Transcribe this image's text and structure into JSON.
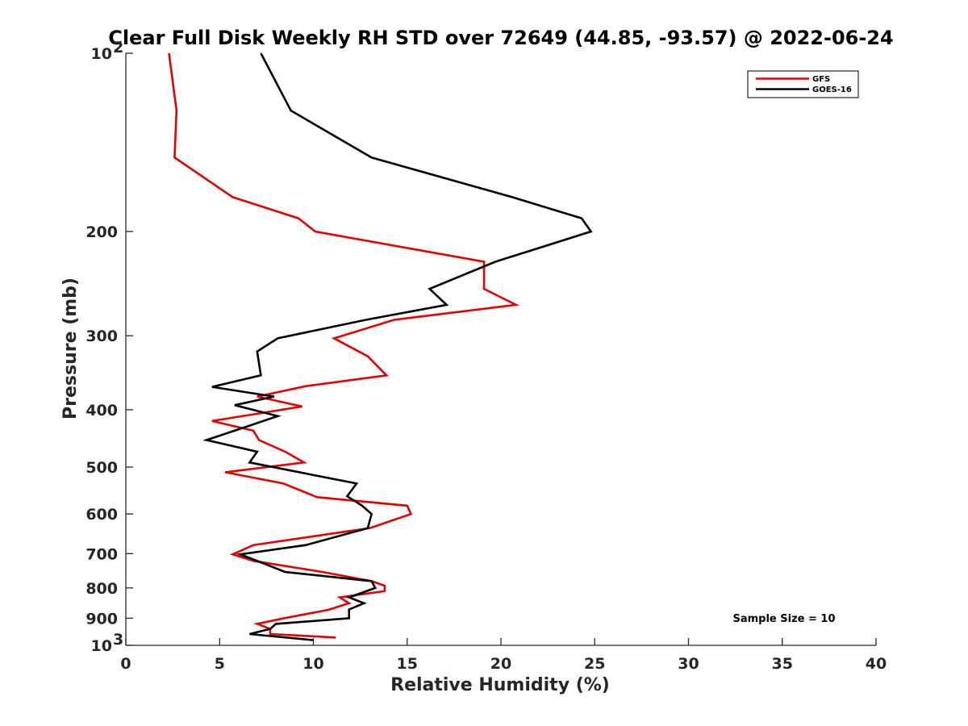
{
  "chart_data": {
    "type": "line",
    "title": "Clear Full Disk Weekly RH STD over 72649 (44.85, -93.57) @ 2022-06-24",
    "xlabel": "Relative Humidity (%)",
    "ylabel": "Pressure (mb)",
    "xlim": [
      0,
      40
    ],
    "ylim": [
      100,
      1000
    ],
    "yscale": "log",
    "yreversed": true,
    "grid": false,
    "legend_position": "top-right",
    "x_ticks": [
      {
        "value": 0,
        "label": "0"
      },
      {
        "value": 5,
        "label": "5"
      },
      {
        "value": 10,
        "label": "10"
      },
      {
        "value": 15,
        "label": "15"
      },
      {
        "value": 20,
        "label": "20"
      },
      {
        "value": 25,
        "label": "25"
      },
      {
        "value": 30,
        "label": "30"
      },
      {
        "value": 35,
        "label": "35"
      },
      {
        "value": 40,
        "label": "40"
      }
    ],
    "y_ticks": [
      {
        "value": 100,
        "label": "10",
        "sup": "2"
      },
      {
        "value": 200,
        "label": "200"
      },
      {
        "value": 300,
        "label": "300"
      },
      {
        "value": 400,
        "label": "400"
      },
      {
        "value": 500,
        "label": "500"
      },
      {
        "value": 600,
        "label": "600"
      },
      {
        "value": 700,
        "label": "700"
      },
      {
        "value": 800,
        "label": "800"
      },
      {
        "value": 900,
        "label": "900"
      },
      {
        "value": 1000,
        "label": "10",
        "sup": "3"
      }
    ],
    "annotation": "Sample Size = 10",
    "series": [
      {
        "name": "GFS",
        "color": "#e50000",
        "points": [
          [
            2.3,
            100
          ],
          [
            2.7,
            125
          ],
          [
            2.6,
            150
          ],
          [
            5.7,
            175
          ],
          [
            9.2,
            190
          ],
          [
            10.1,
            200
          ],
          [
            19.1,
            225
          ],
          [
            19.1,
            250
          ],
          [
            20.8,
            266
          ],
          [
            14.3,
            282
          ],
          [
            11.1,
            303
          ],
          [
            12.9,
            325
          ],
          [
            13.9,
            350
          ],
          [
            9.6,
            365
          ],
          [
            7.0,
            380
          ],
          [
            9.4,
            395
          ],
          [
            4.6,
            418
          ],
          [
            6.8,
            434
          ],
          [
            7.1,
            450
          ],
          [
            8.5,
            471
          ],
          [
            9.5,
            491
          ],
          [
            5.3,
            510
          ],
          [
            8.4,
            533
          ],
          [
            10.2,
            562
          ],
          [
            15.0,
            581
          ],
          [
            15.2,
            600
          ],
          [
            13.0,
            634
          ],
          [
            6.8,
            677
          ],
          [
            5.7,
            702
          ],
          [
            6.8,
            720
          ],
          [
            10.5,
            752
          ],
          [
            13.1,
            779
          ],
          [
            13.8,
            793
          ],
          [
            13.8,
            810
          ],
          [
            11.4,
            830
          ],
          [
            11.9,
            849
          ],
          [
            10.8,
            871
          ],
          [
            8.6,
            898
          ],
          [
            7.0,
            920
          ],
          [
            7.7,
            938
          ],
          [
            7.7,
            957
          ],
          [
            11.2,
            970
          ]
        ]
      },
      {
        "name": "GOES-16",
        "color": "#000000",
        "points": [
          [
            7.2,
            100
          ],
          [
            8.8,
            125
          ],
          [
            13.1,
            150
          ],
          [
            20.6,
            175
          ],
          [
            24.3,
            190
          ],
          [
            24.8,
            200
          ],
          [
            19.7,
            225
          ],
          [
            16.2,
            250
          ],
          [
            17.1,
            266
          ],
          [
            12.8,
            282
          ],
          [
            8.1,
            303
          ],
          [
            7.0,
            319
          ],
          [
            7.2,
            350
          ],
          [
            4.6,
            366
          ],
          [
            7.9,
            380
          ],
          [
            5.8,
            393
          ],
          [
            8.1,
            410
          ],
          [
            5.8,
            434
          ],
          [
            4.3,
            450
          ],
          [
            7.0,
            471
          ],
          [
            6.6,
            491
          ],
          [
            12.3,
            533
          ],
          [
            11.8,
            560
          ],
          [
            12.6,
            581
          ],
          [
            13.1,
            600
          ],
          [
            12.9,
            634
          ],
          [
            9.6,
            677
          ],
          [
            6.1,
            702
          ],
          [
            7.0,
            720
          ],
          [
            8.5,
            752
          ],
          [
            13.1,
            779
          ],
          [
            13.3,
            800
          ],
          [
            11.9,
            830
          ],
          [
            12.7,
            849
          ],
          [
            11.9,
            870
          ],
          [
            11.9,
            900
          ],
          [
            8.0,
            920
          ],
          [
            7.7,
            938
          ],
          [
            6.6,
            957
          ],
          [
            10.0,
            980
          ]
        ]
      }
    ]
  }
}
